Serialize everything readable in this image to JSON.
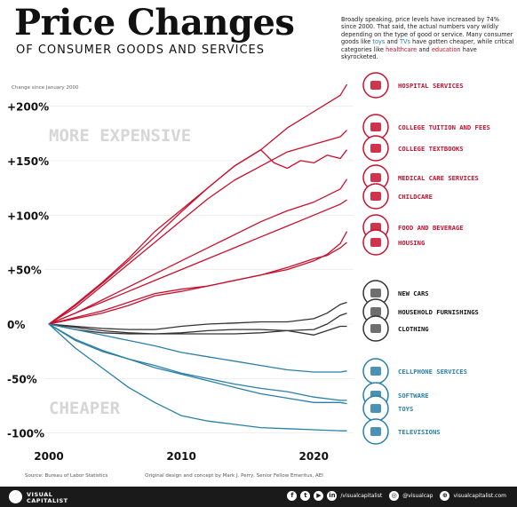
{
  "header": {
    "title": "Price Changes",
    "subtitle": "OF CONSUMER GOODS AND SERVICES",
    "intro_before_toys": "Broadly speaking, price levels have increased by 74% since 2000. That said, the actual numbers vary wildly depending on the type of good or service. Many consumer goods like ",
    "toys_word": "toys",
    "and_word": " and ",
    "tvs_word": "TVs",
    "intro_middle": " have gotten cheaper, while critical categories like ",
    "healthcare_word": "healthcare",
    "and_word2": " and ",
    "education_word": "education",
    "intro_end": " have skyrocketed."
  },
  "chart_data": {
    "type": "line",
    "ylabel": "Change since January 2000",
    "ylim": [
      -100,
      215
    ],
    "xlim": [
      2000,
      2023
    ],
    "yticks": [
      200,
      150,
      100,
      50,
      0,
      -50,
      -100
    ],
    "ytick_labels": [
      "+200%",
      "+150%",
      "+100%",
      "+50%",
      "0%",
      "-50%",
      "-100%"
    ],
    "xticks": [
      2000,
      2010,
      2020
    ],
    "xtick_labels": [
      "2000",
      "2010",
      "2020"
    ],
    "region_labels": {
      "upper": "MORE EXPENSIVE",
      "lower": "CHEAPER"
    },
    "colors": {
      "expensive": "#c8102e",
      "neutral": "#333333",
      "cheaper": "#2a7fa8"
    },
    "series": [
      {
        "name": "HOSPITAL SERVICES",
        "icon": "hospital-icon",
        "group": "expensive",
        "x": [
          2000,
          2002,
          2004,
          2006,
          2008,
          2010,
          2012,
          2014,
          2016,
          2018,
          2020,
          2022,
          2022.5
        ],
        "values": [
          0,
          18,
          38,
          60,
          85,
          105,
          125,
          145,
          160,
          180,
          195,
          210,
          220
        ]
      },
      {
        "name": "COLLEGE TUITION AND FEES",
        "icon": "graduation-cap-icon",
        "group": "expensive",
        "x": [
          2000,
          2002,
          2004,
          2006,
          2008,
          2010,
          2012,
          2014,
          2016,
          2018,
          2020,
          2022,
          2022.5
        ],
        "values": [
          0,
          15,
          35,
          55,
          75,
          95,
          115,
          132,
          145,
          158,
          165,
          172,
          178
        ]
      },
      {
        "name": "COLLEGE TEXTBOOKS",
        "icon": "book-icon",
        "group": "expensive",
        "x": [
          2000,
          2002,
          2004,
          2006,
          2008,
          2010,
          2012,
          2014,
          2016,
          2017,
          2018,
          2019,
          2020,
          2021,
          2022,
          2022.5
        ],
        "values": [
          0,
          17,
          37,
          58,
          80,
          103,
          125,
          145,
          160,
          148,
          143,
          150,
          148,
          155,
          152,
          160
        ]
      },
      {
        "name": "MEDICAL CARE SERVICES",
        "icon": "camera-icon",
        "group": "expensive",
        "x": [
          2000,
          2002,
          2004,
          2006,
          2008,
          2010,
          2012,
          2014,
          2016,
          2018,
          2020,
          2022,
          2022.5
        ],
        "values": [
          0,
          10,
          22,
          34,
          46,
          58,
          70,
          82,
          94,
          104,
          112,
          124,
          133
        ]
      },
      {
        "name": "CHILDCARE",
        "icon": "stroller-icon",
        "group": "expensive",
        "x": [
          2000,
          2002,
          2004,
          2006,
          2008,
          2010,
          2012,
          2014,
          2016,
          2018,
          2020,
          2022,
          2022.5
        ],
        "values": [
          0,
          10,
          20,
          30,
          40,
          50,
          60,
          70,
          80,
          90,
          100,
          110,
          114
        ]
      },
      {
        "name": "FOOD AND BEVERAGE",
        "icon": "food-icon",
        "group": "expensive",
        "x": [
          2000,
          2002,
          2004,
          2006,
          2008,
          2010,
          2012,
          2014,
          2016,
          2018,
          2020,
          2021,
          2022,
          2022.5
        ],
        "values": [
          0,
          5,
          10,
          17,
          26,
          30,
          35,
          40,
          45,
          50,
          58,
          64,
          74,
          85
        ]
      },
      {
        "name": "HOUSING",
        "icon": "house-icon",
        "group": "expensive",
        "x": [
          2000,
          2002,
          2004,
          2006,
          2008,
          2010,
          2012,
          2014,
          2016,
          2018,
          2020,
          2021,
          2022,
          2022.5
        ],
        "values": [
          0,
          6,
          12,
          20,
          28,
          32,
          35,
          40,
          45,
          52,
          60,
          63,
          70,
          75
        ]
      },
      {
        "name": "NEW CARS",
        "icon": "car-icon",
        "group": "neutral",
        "x": [
          2000,
          2002,
          2004,
          2006,
          2008,
          2010,
          2012,
          2014,
          2016,
          2018,
          2020,
          2021,
          2022,
          2022.5
        ],
        "values": [
          0,
          -2,
          -4,
          -5,
          -5,
          -2,
          0,
          1,
          2,
          2,
          5,
          10,
          18,
          20
        ]
      },
      {
        "name": "HOUSEHOLD FURNISHINGS",
        "icon": "sofa-icon",
        "group": "neutral",
        "x": [
          2000,
          2002,
          2004,
          2006,
          2008,
          2010,
          2012,
          2014,
          2016,
          2018,
          2020,
          2021,
          2022,
          2022.5
        ],
        "values": [
          0,
          -3,
          -6,
          -8,
          -9,
          -9,
          -9,
          -9,
          -8,
          -6,
          -5,
          0,
          8,
          10
        ]
      },
      {
        "name": "CLOTHING",
        "icon": "shirt-icon",
        "group": "neutral",
        "x": [
          2000,
          2002,
          2004,
          2006,
          2008,
          2010,
          2012,
          2014,
          2016,
          2018,
          2020,
          2021,
          2022,
          2022.5
        ],
        "values": [
          0,
          -5,
          -8,
          -9,
          -9,
          -8,
          -6,
          -5,
          -5,
          -6,
          -10,
          -6,
          -2,
          -2
        ]
      },
      {
        "name": "CELLPHONE SERVICES",
        "icon": "phone-icon",
        "group": "cheaper",
        "x": [
          2000,
          2002,
          2004,
          2006,
          2008,
          2010,
          2012,
          2014,
          2016,
          2018,
          2020,
          2022,
          2022.5
        ],
        "values": [
          0,
          -5,
          -10,
          -15,
          -20,
          -26,
          -30,
          -34,
          -38,
          -42,
          -44,
          -44,
          -43
        ]
      },
      {
        "name": "SOFTWARE",
        "icon": "software-icon",
        "group": "cheaper",
        "x": [
          2000,
          2002,
          2004,
          2006,
          2008,
          2010,
          2012,
          2014,
          2016,
          2018,
          2020,
          2022,
          2022.5
        ],
        "values": [
          0,
          -15,
          -25,
          -32,
          -38,
          -45,
          -50,
          -55,
          -59,
          -62,
          -67,
          -70,
          -70
        ]
      },
      {
        "name": "TOYS",
        "icon": "bear-icon",
        "group": "cheaper",
        "x": [
          2000,
          2002,
          2004,
          2006,
          2008,
          2010,
          2012,
          2014,
          2016,
          2018,
          2020,
          2022,
          2022.5
        ],
        "values": [
          0,
          -14,
          -24,
          -32,
          -40,
          -46,
          -52,
          -58,
          -64,
          -68,
          -72,
          -72,
          -73
        ]
      },
      {
        "name": "TELEVISIONS",
        "icon": "tv-icon",
        "group": "cheaper",
        "x": [
          2000,
          2002,
          2004,
          2006,
          2008,
          2010,
          2012,
          2014,
          2016,
          2018,
          2020,
          2022,
          2022.5
        ],
        "values": [
          0,
          -22,
          -40,
          -58,
          -72,
          -84,
          -89,
          -92,
          -95,
          -96,
          -97,
          -98,
          -98
        ]
      }
    ]
  },
  "footer": {
    "source": "Source: Bureau of Labor Statistics",
    "credit": "Original design and concept by Mark J. Perry, Senior Fellow Emeritus, AEI",
    "brand_line1": "VISUAL",
    "brand_line2": "CAPITALIST",
    "handle1": "/visualcapitalist",
    "handle2": "@visualcap",
    "handle3": "visualcapitalist.com"
  }
}
